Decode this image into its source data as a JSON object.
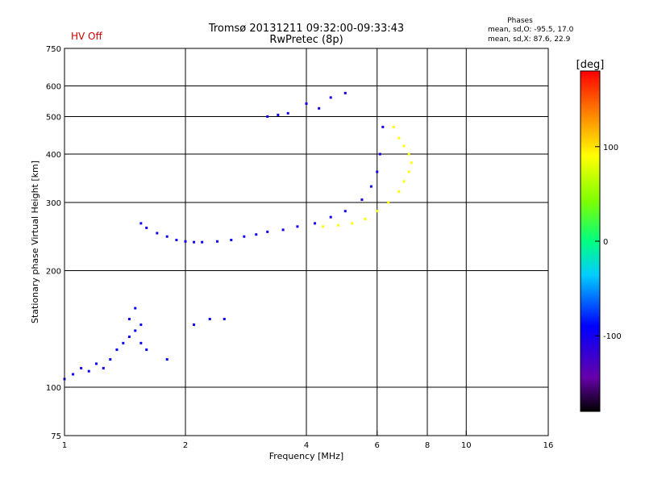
{
  "header": {
    "status": "HV Off",
    "title_line1": "Tromsø 20131211 09:32:00-09:33:43",
    "title_line2": "RwPretec (8p)",
    "phase_title": "Phases",
    "phase_o": "mean, sd,O: -95.5, 17.0",
    "phase_x": "mean, sd,X:  87.6, 22.9"
  },
  "colors": {
    "status": "#cc0000",
    "axis": "#000000",
    "grid": "#000000"
  },
  "chart_data": {
    "type": "scatter",
    "title": "Tromsø 20131211 09:32:00-09:33:43",
    "subtitle": "RwPretec (8p)",
    "xlabel": "Frequency [MHz]",
    "ylabel": "Stationary phase Virtual Height [km]",
    "x_scale": "log",
    "y_scale": "log",
    "xlim": [
      1,
      16
    ],
    "ylim": [
      75,
      750
    ],
    "x_ticks": [
      1,
      2,
      4,
      6,
      8,
      10,
      16
    ],
    "y_ticks": [
      75,
      100,
      200,
      300,
      400,
      500,
      600,
      750
    ],
    "x_grid": [
      2,
      4,
      6,
      8,
      10
    ],
    "y_grid": [
      100,
      200,
      300,
      400,
      500,
      600
    ],
    "grid": true,
    "colorbar": {
      "label": "[deg]",
      "range": [
        -180,
        180
      ],
      "ticks": [
        -100,
        0,
        100
      ],
      "colormap": "rainbow (black-purple-blue-cyan-green-yellow-orange-red)"
    },
    "traces": [
      {
        "name": "",
        "phase_deg": -95,
        "points": [
          [
            1.0,
            105
          ],
          [
            1.05,
            108
          ],
          [
            1.1,
            112
          ],
          [
            1.15,
            110
          ],
          [
            1.2,
            115
          ],
          [
            1.25,
            112
          ],
          [
            1.3,
            118
          ],
          [
            1.35,
            125
          ],
          [
            1.4,
            130
          ],
          [
            1.45,
            135
          ],
          [
            1.5,
            140
          ],
          [
            1.55,
            130
          ],
          [
            1.6,
            125
          ],
          [
            1.45,
            150
          ],
          [
            1.5,
            160
          ],
          [
            1.55,
            145
          ],
          [
            1.8,
            118
          ],
          [
            2.1,
            145
          ],
          [
            2.3,
            150
          ],
          [
            2.5,
            150
          ]
        ]
      },
      {
        "name": "",
        "phase_deg": -100,
        "points": [
          [
            1.55,
            265
          ],
          [
            1.6,
            258
          ],
          [
            1.7,
            250
          ],
          [
            1.8,
            245
          ],
          [
            1.9,
            240
          ],
          [
            2.0,
            238
          ],
          [
            2.1,
            237
          ],
          [
            2.2,
            237
          ],
          [
            2.4,
            238
          ],
          [
            2.6,
            240
          ],
          [
            2.8,
            245
          ],
          [
            3.0,
            248
          ],
          [
            3.2,
            252
          ],
          [
            3.5,
            255
          ],
          [
            3.8,
            260
          ],
          [
            4.2,
            265
          ],
          [
            4.6,
            275
          ],
          [
            5.0,
            285
          ],
          [
            5.5,
            305
          ],
          [
            5.8,
            330
          ],
          [
            6.0,
            360
          ],
          [
            6.1,
            400
          ],
          [
            6.2,
            470
          ]
        ]
      },
      {
        "name": "",
        "phase_deg": 90,
        "points": [
          [
            4.4,
            260
          ],
          [
            4.8,
            262
          ],
          [
            5.2,
            265
          ],
          [
            5.6,
            272
          ],
          [
            6.0,
            285
          ],
          [
            6.4,
            300
          ],
          [
            6.8,
            320
          ],
          [
            7.0,
            340
          ],
          [
            7.2,
            360
          ],
          [
            7.3,
            380
          ],
          [
            7.2,
            400
          ],
          [
            7.0,
            420
          ],
          [
            6.8,
            440
          ],
          [
            6.6,
            470
          ]
        ]
      },
      {
        "name": "",
        "phase_deg": -100,
        "points": [
          [
            3.2,
            500
          ],
          [
            3.4,
            505
          ],
          [
            3.6,
            510
          ],
          [
            4.0,
            540
          ],
          [
            4.3,
            525
          ],
          [
            4.6,
            560
          ],
          [
            5.0,
            575
          ]
        ]
      }
    ]
  }
}
